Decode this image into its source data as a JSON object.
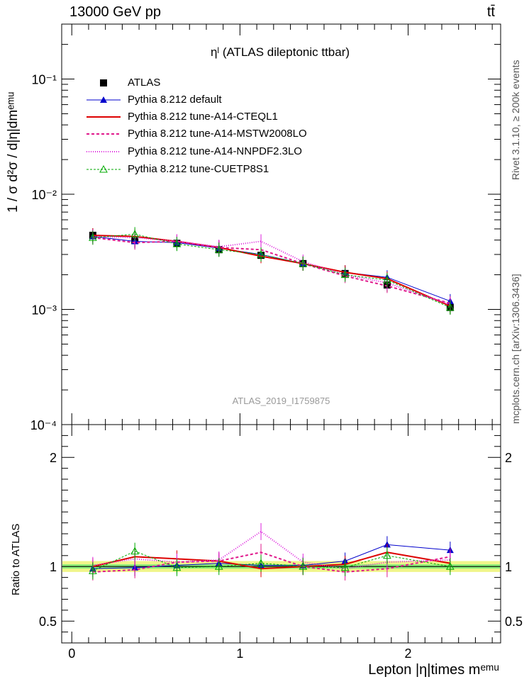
{
  "header": {
    "left": "13000 GeV pp",
    "right": "tt̄",
    "side_top": "Rivet 3.1.10, ≥ 200k events",
    "side_bottom": "mcplots.cern.ch [arXiv:1306.3436]"
  },
  "colors": {
    "atlas": "#000000",
    "default": "#0000cc",
    "cteql1": "#dd0000",
    "mstw": "#e0198c",
    "nnpdf": "#dd22dd",
    "cuetp": "#00aa00",
    "band_outer": "#f0f58a",
    "band_inner": "#8cf07a"
  },
  "chart_data": [
    {
      "type": "line",
      "title": "ηˡ (ATLAS dileptonic ttbar)",
      "watermark": "ATLAS_2019_I1759875",
      "xlabel": "Lepton |η|times mᵉᵐᵘ",
      "ylabel": "1 / σ d²σ / d|η|dmᵉᵐᵘ",
      "yscale": "log",
      "xlim": [
        -0.06,
        2.55
      ],
      "ylim": [
        0.0001,
        0.3
      ],
      "x_ticks": [
        "0",
        "1",
        "2"
      ],
      "y_ticks": [
        "10⁻¹",
        "10⁻²",
        "10⁻³",
        "10⁻⁴"
      ],
      "x": [
        0.125,
        0.375,
        0.625,
        0.875,
        1.125,
        1.375,
        1.625,
        1.875,
        2.25
      ],
      "series": [
        {
          "key": "atlas",
          "name": "ATLAS",
          "values": [
            0.0044,
            0.00395,
            0.00375,
            0.0033,
            0.00295,
            0.0025,
            0.00205,
            0.00163,
            0.00104
          ]
        },
        {
          "key": "default",
          "name": "Pythia 8.212 default",
          "values": [
            0.0043,
            0.0039,
            0.0038,
            0.0034,
            0.003,
            0.0025,
            0.0021,
            0.0019,
            0.00118
          ]
        },
        {
          "key": "cteql1",
          "name": "Pythia 8.212 tune-A14-CTEQL1",
          "values": [
            0.0044,
            0.0043,
            0.0039,
            0.00345,
            0.0029,
            0.0025,
            0.0021,
            0.00185,
            0.00107
          ]
        },
        {
          "key": "mstw",
          "name": "Pythia 8.212 tune-A14-MSTW2008LO",
          "values": [
            0.0042,
            0.0038,
            0.0039,
            0.00345,
            0.0033,
            0.0025,
            0.00195,
            0.0016,
            0.00113
          ]
        },
        {
          "key": "nnpdf",
          "name": "Pythia 8.212 tune-A14-NNPDF2.3LO",
          "values": [
            0.0043,
            0.0042,
            0.0039,
            0.0035,
            0.0039,
            0.0026,
            0.002,
            0.0017,
            0.0011
          ]
        },
        {
          "key": "cuetp",
          "name": "Pythia 8.212 tune-CUETP8S1",
          "values": [
            0.0042,
            0.0045,
            0.0037,
            0.0033,
            0.003,
            0.0025,
            0.002,
            0.0018,
            0.00104
          ]
        }
      ]
    },
    {
      "type": "line",
      "ylabel": "Ratio to ATLAS",
      "ylim": [
        0.3,
        2.3
      ],
      "y_ticks": [
        "0.5",
        "1",
        "2"
      ],
      "x": [
        0.125,
        0.375,
        0.625,
        0.875,
        1.125,
        1.375,
        1.625,
        1.875,
        2.25
      ],
      "band": {
        "outer": 0.05,
        "inner": 0.02
      },
      "series": [
        {
          "key": "default",
          "values": [
            0.98,
            0.99,
            1.01,
            1.03,
            1.01,
            1.01,
            1.05,
            1.2,
            1.15
          ]
        },
        {
          "key": "cteql1",
          "values": [
            1.0,
            1.09,
            1.07,
            1.05,
            0.98,
            1.0,
            1.02,
            1.13,
            1.03
          ]
        },
        {
          "key": "mstw",
          "values": [
            0.95,
            0.97,
            1.04,
            1.05,
            1.13,
            1.0,
            0.95,
            0.98,
            1.09
          ]
        },
        {
          "key": "nnpdf",
          "values": [
            1.01,
            1.07,
            1.04,
            1.06,
            1.32,
            1.04,
            0.98,
            1.04,
            1.06
          ]
        },
        {
          "key": "cuetp",
          "values": [
            0.96,
            1.14,
            0.99,
            1.0,
            1.03,
            1.0,
            0.99,
            1.1,
            1.0
          ]
        }
      ]
    }
  ]
}
